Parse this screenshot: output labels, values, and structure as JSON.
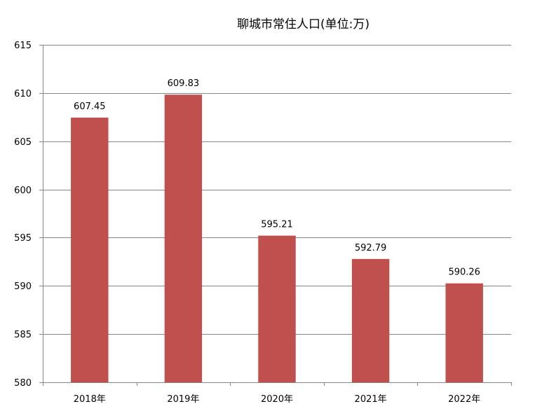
{
  "chart_data": {
    "type": "bar",
    "title": "聊城市常住人口(单位:万)",
    "categories": [
      "2018年",
      "2019年",
      "2020年",
      "2021年",
      "2022年"
    ],
    "values": [
      607.45,
      609.83,
      595.21,
      592.79,
      590.26
    ],
    "data_labels": [
      "607.45",
      "609.83",
      "595.21",
      "592.79",
      "590.26"
    ],
    "ylim": [
      580,
      615
    ],
    "yticks": [
      580,
      585,
      590,
      595,
      600,
      605,
      610,
      615
    ],
    "xlabel": "",
    "ylabel": "",
    "grid": true,
    "legend": "none",
    "bar_color": "#c0504d",
    "grid_color": "#868686"
  }
}
